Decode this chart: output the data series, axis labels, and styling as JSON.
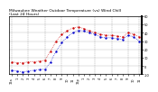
{
  "title": "Milwaukee Weather Outdoor Temperature (vs) Wind Chill\n(Last 24 Hours)",
  "title_fontsize": 3.2,
  "background_color": "#ffffff",
  "temp_color": "#cc0000",
  "windchill_color": "#0000cc",
  "x_hours": [
    0,
    1,
    2,
    3,
    4,
    5,
    6,
    7,
    8,
    9,
    10,
    11,
    12,
    13,
    14,
    15,
    16,
    17,
    18,
    19,
    20,
    21,
    22,
    23
  ],
  "temp_values": [
    5,
    4,
    4,
    5,
    5,
    6,
    7,
    18,
    30,
    38,
    42,
    46,
    47,
    45,
    42,
    40,
    38,
    37,
    37,
    36,
    35,
    40,
    38,
    35
  ],
  "windchill_values": [
    -5,
    -6,
    -7,
    -6,
    -5,
    -4,
    -4,
    5,
    18,
    28,
    35,
    40,
    43,
    42,
    40,
    38,
    35,
    34,
    34,
    33,
    32,
    37,
    35,
    30
  ],
  "ylim": [
    -10,
    60
  ],
  "yticks": [
    -10,
    0,
    10,
    20,
    30,
    40,
    50,
    60
  ],
  "ytick_labels": [
    "-10",
    "0",
    "10",
    "20",
    "30",
    "40",
    "50",
    "60"
  ],
  "tick_labelsize": 2.5,
  "line_markersize": 1.4,
  "line_linewidth": 0.5,
  "grid_color": "#999999",
  "x_tick_labels": [
    "12a",
    "1",
    "2",
    "3",
    "4",
    "5",
    "6",
    "7",
    "8",
    "9",
    "10",
    "11",
    "12p",
    "1",
    "2",
    "3",
    "4",
    "5",
    "6",
    "7",
    "8",
    "9",
    "10",
    "11"
  ],
  "vgrid_positions": [
    0,
    3,
    6,
    9,
    12,
    15,
    18,
    21,
    23
  ],
  "fig_width": 1.6,
  "fig_height": 0.87
}
